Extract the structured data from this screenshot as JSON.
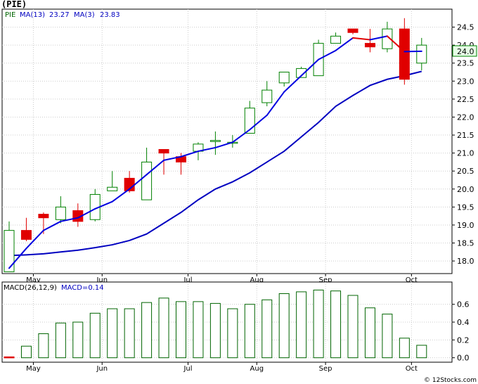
{
  "title": "(PIE)",
  "legend": {
    "ticker": "PIE",
    "ma13_label": "MA(13)",
    "ma13_value": "23.27",
    "ma3_label": "MA(3)",
    "ma3_value": "23.83"
  },
  "price_axis": {
    "ylim": [
      17.65,
      25.0
    ],
    "ticks": [
      "18.0",
      "18.5",
      "19.0",
      "19.5",
      "20.0",
      "20.5",
      "21.0",
      "21.5",
      "22.0",
      "22.5",
      "23.0",
      "23.5",
      "24.0",
      "24.5"
    ],
    "last_price_label": "24.0"
  },
  "macd_panel": {
    "label": "MACD(26,12,9)",
    "value_label": "MACD=0.14",
    "ylim": [
      -0.05,
      0.85
    ],
    "ticks": [
      "0.0",
      "0.2",
      "0.4",
      "0.6"
    ]
  },
  "months": [
    {
      "label": "May",
      "index": 1
    },
    {
      "label": "Jun",
      "index": 5
    },
    {
      "label": "Jul",
      "index": 10
    },
    {
      "label": "Aug",
      "index": 14
    },
    {
      "label": "Sep",
      "index": 18
    },
    {
      "label": "Oct",
      "index": 23
    }
  ],
  "colors": {
    "up": "#008000",
    "down": "#e00000",
    "ma13": "#0000c0",
    "ma3": "#0000e0",
    "ma3_down": "#e00000",
    "macd": "#006400",
    "grid": "#cccccc",
    "frame": "#000000"
  },
  "credit": "© 12Stocks.com",
  "chart_data": {
    "type": "candlestick",
    "x": [
      0,
      1,
      2,
      3,
      4,
      5,
      6,
      7,
      8,
      9,
      10,
      11,
      12,
      13,
      14,
      15,
      16,
      17,
      18,
      19,
      20,
      21,
      22,
      23,
      24
    ],
    "candles": [
      {
        "open": 17.7,
        "high": 19.1,
        "low": 17.7,
        "close": 18.85
      },
      {
        "open": 18.85,
        "high": 19.2,
        "low": 18.55,
        "close": 18.6
      },
      {
        "open": 19.3,
        "high": 19.35,
        "low": 18.75,
        "close": 19.2
      },
      {
        "open": 19.15,
        "high": 19.8,
        "low": 19.05,
        "close": 19.5
      },
      {
        "open": 19.4,
        "high": 19.6,
        "low": 18.95,
        "close": 19.1
      },
      {
        "open": 19.15,
        "high": 20.0,
        "low": 19.1,
        "close": 19.85
      },
      {
        "open": 19.95,
        "high": 20.5,
        "low": 19.95,
        "close": 20.05
      },
      {
        "open": 20.3,
        "high": 20.5,
        "low": 19.9,
        "close": 19.95
      },
      {
        "open": 19.7,
        "high": 21.15,
        "low": 19.7,
        "close": 20.75
      },
      {
        "open": 21.1,
        "high": 21.1,
        "low": 20.4,
        "close": 21.0
      },
      {
        "open": 20.9,
        "high": 21.0,
        "low": 20.4,
        "close": 20.75
      },
      {
        "open": 21.05,
        "high": 21.3,
        "low": 20.8,
        "close": 21.25
      },
      {
        "open": 21.35,
        "high": 21.6,
        "low": 20.95,
        "close": 21.35
      },
      {
        "open": 21.3,
        "high": 21.5,
        "low": 21.15,
        "close": 21.3
      },
      {
        "open": 21.55,
        "high": 22.45,
        "low": 21.55,
        "close": 22.25
      },
      {
        "open": 22.4,
        "high": 23.0,
        "low": 22.3,
        "close": 22.75
      },
      {
        "open": 22.95,
        "high": 23.25,
        "low": 22.85,
        "close": 23.25
      },
      {
        "open": 23.1,
        "high": 23.4,
        "low": 23.1,
        "close": 23.35
      },
      {
        "open": 23.15,
        "high": 24.15,
        "low": 23.15,
        "close": 24.05
      },
      {
        "open": 24.05,
        "high": 24.35,
        "low": 24.05,
        "close": 24.25
      },
      {
        "open": 24.45,
        "high": 24.45,
        "low": 24.3,
        "close": 24.35
      },
      {
        "open": 24.05,
        "high": 24.45,
        "low": 23.8,
        "close": 23.95
      },
      {
        "open": 23.9,
        "high": 24.65,
        "low": 23.8,
        "close": 24.45
      },
      {
        "open": 24.45,
        "high": 24.75,
        "low": 22.9,
        "close": 23.05
      },
      {
        "open": 23.5,
        "high": 24.2,
        "low": 23.3,
        "close": 24.0
      }
    ],
    "ma13": [
      18.15,
      18.17,
      18.2,
      18.25,
      18.3,
      18.37,
      18.45,
      18.57,
      18.75,
      19.05,
      19.35,
      19.7,
      20.0,
      20.2,
      20.45,
      20.75,
      21.05,
      21.45,
      21.85,
      22.3,
      22.6,
      22.88,
      23.05,
      23.15,
      23.27
    ],
    "ma3": [
      17.8,
      18.35,
      18.85,
      19.1,
      19.2,
      19.45,
      19.65,
      20.0,
      20.4,
      20.8,
      20.9,
      21.05,
      21.15,
      21.3,
      21.65,
      22.05,
      22.7,
      23.15,
      23.6,
      23.85,
      24.2,
      24.15,
      24.25,
      23.82,
      23.83
    ],
    "macd": [
      0.01,
      0.13,
      0.27,
      0.39,
      0.4,
      0.5,
      0.55,
      0.55,
      0.62,
      0.67,
      0.63,
      0.63,
      0.61,
      0.55,
      0.6,
      0.65,
      0.72,
      0.74,
      0.76,
      0.75,
      0.7,
      0.56,
      0.49,
      0.22,
      0.14
    ]
  }
}
